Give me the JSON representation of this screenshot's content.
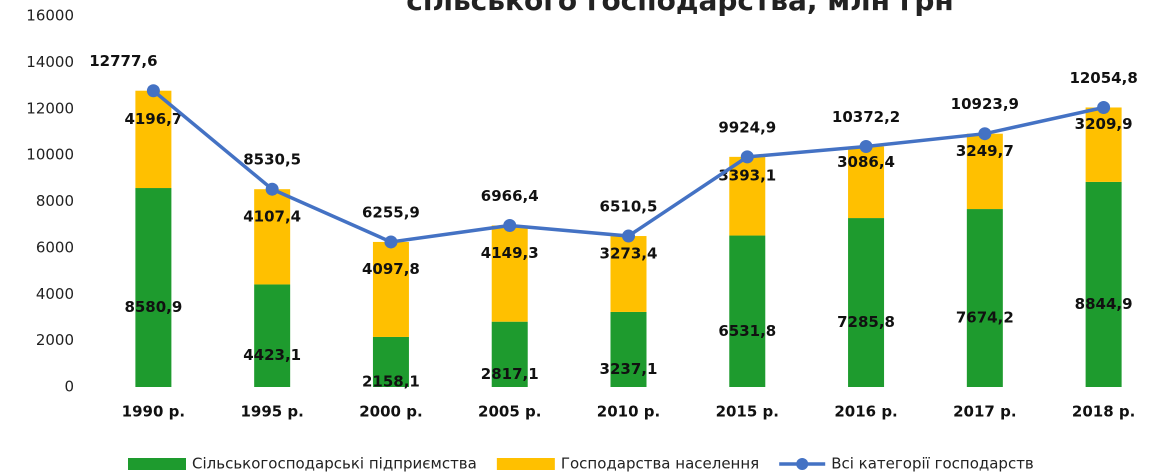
{
  "chart_data": {
    "type": "bar",
    "title": "сільського господарства, млн грн",
    "categories": [
      "1990 р.",
      "1995 р.",
      "2000 р.",
      "2005 р.",
      "2010 р.",
      "2015 р.",
      "2016 р.",
      "2017 р.",
      "2018 р."
    ],
    "series": [
      {
        "name": "Сільськогосподарські підприємства",
        "color": "#1e9b2e",
        "type": "bar",
        "values": [
          8580.9,
          4423.1,
          2158.1,
          2817.1,
          3237.1,
          6531.8,
          7285.8,
          7674.2,
          8844.9
        ],
        "value_labels": [
          "8580,9",
          "4423,1",
          "2158,1",
          "2817,1",
          "3237,1",
          "6531,8",
          "7285,8",
          "7674,2",
          "8844,9"
        ]
      },
      {
        "name": "Господарства населення",
        "color": "#ffc000",
        "type": "bar",
        "values": [
          4196.7,
          4107.4,
          4097.8,
          4149.3,
          3273.4,
          3393.1,
          3086.4,
          3249.7,
          3209.9
        ],
        "value_labels": [
          "4196,7",
          "4107,4",
          "4097,8",
          "4149,3",
          "3273,4",
          "3393,1",
          "3086,4",
          "3249,7",
          "3209,9"
        ]
      },
      {
        "name": "Всі категорії господарств",
        "color": "#4472c4",
        "type": "line",
        "values": [
          12777.6,
          8530.5,
          6255.9,
          6966.4,
          6510.5,
          9924.9,
          10372.2,
          10923.9,
          12054.8
        ],
        "value_labels": [
          "12777,6",
          "8530,5",
          "6255,9",
          "6966,4",
          "6510,5",
          "9924,9",
          "10372,2",
          "10923,9",
          "12054,8"
        ]
      }
    ],
    "ylim": [
      0,
      16000
    ],
    "yticks": [
      0,
      2000,
      4000,
      6000,
      8000,
      10000,
      12000,
      14000,
      16000
    ]
  }
}
